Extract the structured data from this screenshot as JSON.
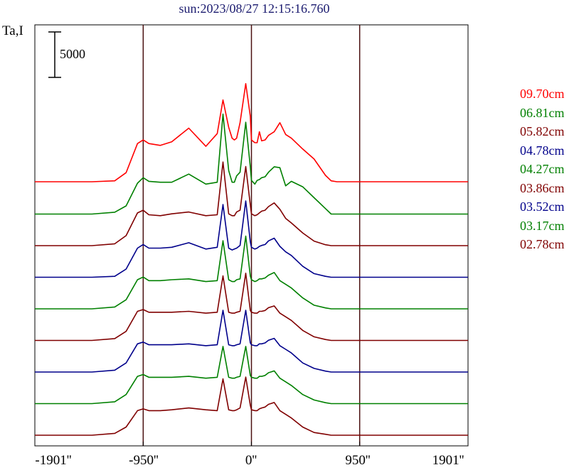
{
  "chart_data": {
    "type": "line",
    "title": "sun:2023/08/27 12:15:16.760",
    "ylabel": "Ta,I",
    "scale_bar_label": "5000",
    "scale_bar_value": 5000,
    "xlim": [
      -1901,
      1901
    ],
    "x_ticks": [
      {
        "value": -1901,
        "label": "-1901''"
      },
      {
        "value": -950,
        "label": "-950''"
      },
      {
        "value": 0,
        "label": "0''"
      },
      {
        "value": 950,
        "label": "950''"
      },
      {
        "value": 1901,
        "label": "1901''"
      }
    ],
    "vertical_lines": [
      -950,
      0,
      950
    ],
    "grid": false,
    "legend_position": "right",
    "profile_x": [
      -1901,
      -1400,
      -1200,
      -1100,
      -1000,
      -950,
      -900,
      -800,
      -700,
      -550,
      -400,
      -300,
      -250,
      -200,
      -170,
      -150,
      -130,
      -100,
      -50,
      -10,
      0,
      30,
      50,
      70,
      90,
      120,
      150,
      200,
      250,
      300,
      350,
      450,
      550,
      650,
      700,
      750,
      800,
      850,
      900,
      950,
      1000,
      1100,
      1200,
      1400,
      1901
    ],
    "series": [
      {
        "name": "09.70cm",
        "color": "#ff0000",
        "baseline": 1000,
        "values": [
          0,
          0,
          100,
          1000,
          4200,
          4600,
          4200,
          4000,
          4400,
          5900,
          3900,
          5300,
          9000,
          6000,
          4800,
          4600,
          4800,
          6500,
          10800,
          7200,
          4600,
          4300,
          4300,
          5500,
          4500,
          4600,
          5100,
          5500,
          6500,
          5200,
          4800,
          3600,
          2500,
          700,
          100,
          0,
          0,
          0,
          0,
          0,
          0,
          0,
          0,
          0,
          0
        ]
      },
      {
        "name": "06.81cm",
        "color": "#008000",
        "baseline": 0,
        "values": [
          0,
          0,
          200,
          900,
          3400,
          4000,
          3600,
          3500,
          3500,
          4400,
          3300,
          3500,
          11000,
          4800,
          3500,
          3500,
          4200,
          4600,
          10100,
          5200,
          3700,
          3300,
          3700,
          3800,
          4000,
          4100,
          4600,
          5200,
          5100,
          3100,
          3600,
          3000,
          1800,
          600,
          0,
          0,
          0,
          0,
          0,
          0,
          0,
          0,
          0,
          0,
          0
        ]
      },
      {
        "name": "05.82cm",
        "color": "#800000",
        "baseline": 0,
        "values": [
          0,
          0,
          200,
          1100,
          3600,
          3900,
          3400,
          3300,
          3500,
          3700,
          3300,
          3400,
          9200,
          3500,
          3300,
          3300,
          3700,
          3900,
          8700,
          4500,
          3500,
          3300,
          3400,
          3600,
          3800,
          3900,
          4300,
          4700,
          4000,
          3000,
          2500,
          1400,
          500,
          100,
          0,
          0,
          0,
          0,
          0,
          0,
          0,
          0,
          0,
          0,
          0
        ]
      },
      {
        "name": "04.78cm",
        "color": "#00008b",
        "baseline": 0,
        "values": [
          0,
          0,
          100,
          900,
          3200,
          3600,
          3200,
          3200,
          3300,
          3800,
          3100,
          3300,
          8000,
          3200,
          3000,
          3100,
          3200,
          3500,
          8400,
          3900,
          3300,
          3100,
          3200,
          3400,
          3500,
          3600,
          4000,
          4300,
          3400,
          2800,
          2400,
          1200,
          400,
          100,
          0,
          0,
          0,
          0,
          0,
          0,
          0,
          0,
          0,
          0,
          0
        ]
      },
      {
        "name": "04.27cm",
        "color": "#008000",
        "baseline": 0,
        "values": [
          0,
          0,
          200,
          1000,
          3200,
          3500,
          3100,
          3100,
          3200,
          3300,
          3000,
          3100,
          7500,
          3200,
          3000,
          3000,
          3200,
          3300,
          8000,
          3600,
          3200,
          3000,
          3100,
          3300,
          3300,
          3400,
          3700,
          4000,
          3100,
          2700,
          2300,
          1200,
          400,
          100,
          0,
          0,
          0,
          0,
          0,
          0,
          0,
          0,
          0,
          0,
          0
        ]
      },
      {
        "name": "03.86cm",
        "color": "#800000",
        "baseline": 0,
        "values": [
          0,
          0,
          200,
          1000,
          3200,
          3400,
          3100,
          3100,
          3100,
          3200,
          3000,
          3100,
          7100,
          3100,
          3000,
          3000,
          3100,
          3200,
          7400,
          3300,
          3100,
          3000,
          3000,
          3200,
          3200,
          3300,
          3600,
          3800,
          3000,
          2600,
          2200,
          1100,
          400,
          100,
          0,
          0,
          0,
          0,
          0,
          0,
          0,
          0,
          0,
          0,
          0
        ]
      },
      {
        "name": "03.52cm",
        "color": "#00008b",
        "baseline": 0,
        "values": [
          0,
          0,
          200,
          1000,
          3100,
          3300,
          3000,
          3000,
          3000,
          3100,
          2900,
          3000,
          6800,
          3000,
          2900,
          2900,
          3000,
          3100,
          6800,
          3200,
          3000,
          2900,
          2900,
          3100,
          3100,
          3200,
          3500,
          3700,
          2900,
          2500,
          2100,
          1000,
          400,
          100,
          0,
          0,
          0,
          0,
          0,
          0,
          0,
          0,
          0,
          0,
          0
        ]
      },
      {
        "name": "03.17cm",
        "color": "#008000",
        "baseline": 0,
        "values": [
          0,
          0,
          200,
          1000,
          3000,
          3200,
          2900,
          2900,
          2900,
          3000,
          2800,
          2900,
          6300,
          2900,
          2800,
          2800,
          2900,
          3000,
          6300,
          3100,
          2900,
          2800,
          2800,
          3000,
          3000,
          3100,
          3400,
          3600,
          2800,
          2400,
          2000,
          1000,
          400,
          100,
          0,
          0,
          0,
          0,
          0,
          0,
          0,
          0,
          0,
          0,
          0
        ]
      },
      {
        "name": "02.78cm",
        "color": "#800000",
        "baseline": 0,
        "values": [
          0,
          0,
          200,
          900,
          2700,
          2900,
          2700,
          2700,
          2800,
          3000,
          2800,
          2700,
          6200,
          2800,
          2700,
          2700,
          2800,
          3000,
          6400,
          3300,
          2800,
          2700,
          2700,
          2900,
          3000,
          3100,
          3400,
          3600,
          2700,
          2300,
          1900,
          900,
          300,
          100,
          0,
          0,
          0,
          0,
          0,
          0,
          0,
          0,
          0,
          0,
          0
        ]
      }
    ]
  }
}
